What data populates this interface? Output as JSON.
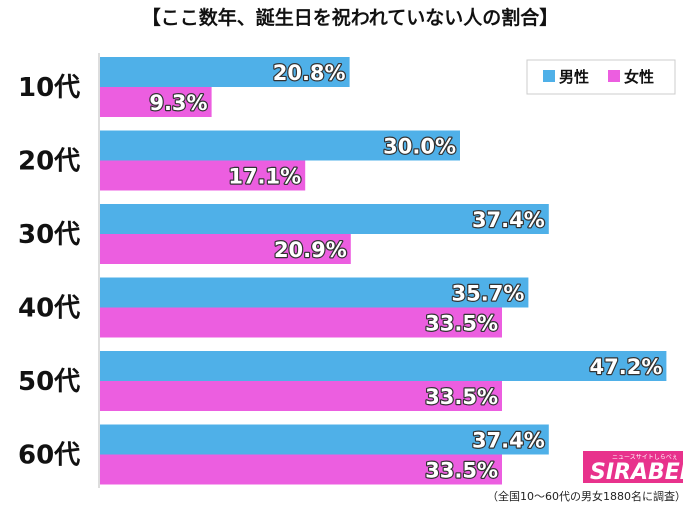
{
  "chart_data": {
    "type": "bar",
    "orientation": "horizontal",
    "title": "【ここ数年、誕生日を祝われていない人の割合】",
    "categories": [
      "10代",
      "20代",
      "30代",
      "40代",
      "50代",
      "60代"
    ],
    "series": [
      {
        "name": "男性",
        "color": "#4fb0e8",
        "values": [
          20.8,
          30.0,
          37.4,
          35.7,
          47.2,
          37.4
        ],
        "labels": [
          "20.8%",
          "30.0%",
          "37.4%",
          "35.7%",
          "47.2%",
          "37.4%"
        ]
      },
      {
        "name": "女性",
        "color": "#ec5ee0",
        "values": [
          9.3,
          17.1,
          20.9,
          33.5,
          33.5,
          33.5
        ],
        "labels": [
          "9.3%",
          "17.1%",
          "20.9%",
          "33.5%",
          "33.5%",
          "33.5%"
        ]
      }
    ],
    "unit": "%",
    "xlim": [
      0,
      50
    ],
    "legend_position": "top-right",
    "grid": false
  },
  "note": "（全国10～60代の男女1880名に調査）",
  "logo": {
    "text": "SIRABEE",
    "subtext": "ニュースサイトしらべぇ"
  }
}
